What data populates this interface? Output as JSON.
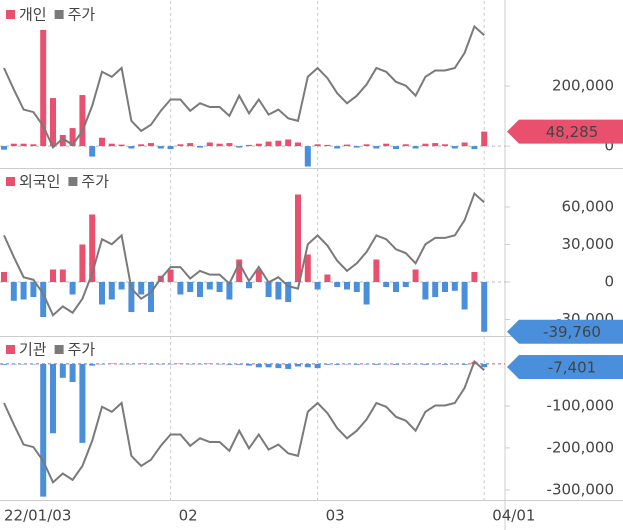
{
  "chart_data": [
    {
      "type": "bar",
      "series": [
        {
          "name": "개인",
          "color": "#e8506e",
          "negative_color": "#4a8fdb",
          "values": [
            -12000,
            8000,
            8000,
            6000,
            387000,
            160000,
            37000,
            60000,
            170000,
            -35000,
            28000,
            8000,
            5000,
            -8000,
            6000,
            10000,
            -8000,
            -10000,
            6000,
            10000,
            -5000,
            12000,
            8000,
            10000,
            -5000,
            4000,
            8000,
            15000,
            18000,
            22000,
            12000,
            -68000,
            6000,
            4000,
            -8000,
            5000,
            -5000,
            6000,
            -8000,
            8000,
            -10000,
            6000,
            -8000,
            8000,
            10000,
            6000,
            -8000,
            12000,
            -10000,
            48285
          ],
          "value_labels": [
            null,
            null,
            null,
            null,
            null,
            null,
            null,
            null,
            null,
            null,
            null,
            null,
            null,
            null,
            null,
            null,
            null,
            null,
            null,
            null,
            null,
            null,
            null,
            null,
            null,
            null,
            null,
            null,
            null,
            null,
            null,
            null,
            null,
            null,
            null,
            null,
            null,
            null,
            null,
            null,
            null,
            null,
            null,
            null,
            null,
            null,
            null,
            null,
            null,
            "48,285"
          ]
        },
        {
          "name": "주가",
          "type": "line",
          "color": "#7a7a7a",
          "values": [
            65,
            48,
            32,
            30,
            19,
            2,
            9,
            4,
            15,
            35,
            62,
            58,
            65,
            23,
            15,
            20,
            31,
            40,
            40,
            31,
            37,
            34,
            34,
            27,
            43,
            29,
            40,
            28,
            32,
            25,
            23,
            58,
            65,
            57,
            45,
            37,
            43,
            52,
            65,
            62,
            54,
            51,
            43,
            58,
            63,
            63,
            65,
            77,
            98,
            91
          ]
        }
      ],
      "ylim": [
        -63000,
        470000
      ],
      "price_lim": [
        -12,
        115
      ],
      "yticks": [
        0,
        {
          "value": 200000,
          "label": "200,000"
        }
      ]
    },
    {
      "type": "bar",
      "series": [
        {
          "name": "외국인",
          "color": "#e8506e",
          "negative_color": "#4a8fdb",
          "values": [
            8000,
            -15000,
            -14000,
            -12000,
            -28000,
            10000,
            10000,
            -10000,
            30000,
            54000,
            -18000,
            -14000,
            -6000,
            -24000,
            -10000,
            -24000,
            5000,
            10000,
            -10000,
            -8000,
            -12000,
            -6000,
            -8000,
            -14000,
            18000,
            -5000,
            10000,
            -12000,
            -14000,
            -16000,
            70000,
            22000,
            -6000,
            6000,
            -4000,
            -6000,
            -8000,
            -18000,
            18000,
            -4000,
            -8000,
            -4000,
            10000,
            -14000,
            -12000,
            -8000,
            -7000,
            -22000,
            8000,
            -39760
          ],
          "value_labels": [
            null,
            null,
            null,
            null,
            null,
            null,
            null,
            null,
            null,
            null,
            null,
            null,
            null,
            null,
            null,
            null,
            null,
            null,
            null,
            null,
            null,
            null,
            null,
            null,
            null,
            null,
            null,
            null,
            null,
            null,
            null,
            null,
            null,
            null,
            null,
            null,
            null,
            null,
            null,
            null,
            null,
            null,
            null,
            null,
            null,
            null,
            null,
            null,
            null,
            "-39,760"
          ]
        },
        {
          "name": "주가",
          "type": "line",
          "color": "#7a7a7a",
          "values": [
            65,
            48,
            32,
            30,
            19,
            2,
            9,
            4,
            15,
            35,
            62,
            58,
            65,
            23,
            15,
            20,
            31,
            40,
            40,
            31,
            37,
            34,
            34,
            27,
            43,
            29,
            40,
            28,
            32,
            25,
            23,
            58,
            65,
            57,
            45,
            37,
            43,
            52,
            65,
            62,
            54,
            51,
            43,
            58,
            63,
            63,
            65,
            77,
            98,
            91
          ]
        }
      ],
      "ylim": [
        -40800,
        88000
      ],
      "price_lim": [
        -12,
        115
      ],
      "yticks": [
        {
          "value": -30000,
          "label": "-30,000"
        },
        0,
        {
          "value": 30000,
          "label": "30,000"
        },
        {
          "value": 60000,
          "label": "60,000"
        }
      ]
    },
    {
      "type": "bar",
      "series": [
        {
          "name": "기관",
          "color": "#e8506e",
          "negative_color": "#4a8fdb",
          "values": [
            -2000,
            -1000,
            -1000,
            -1000,
            -316000,
            -165000,
            -33000,
            -43000,
            -188000,
            -4000,
            -1000,
            1000,
            -1000,
            -1000,
            1000,
            -1000,
            -1000,
            -1000,
            1000,
            -1000,
            -1000,
            1000,
            -1000,
            -2000,
            -2000,
            -4000,
            -8000,
            -8000,
            -10000,
            -12000,
            -6000,
            -8000,
            -10000,
            -2000,
            -2000,
            -1000,
            -2000,
            -1000,
            -2000,
            -1000,
            -2000,
            -1000,
            -1000,
            -2000,
            -1000,
            -2000,
            -1000,
            -2000,
            5000,
            -7401
          ],
          "value_labels": [
            null,
            null,
            null,
            null,
            null,
            null,
            null,
            null,
            null,
            null,
            null,
            null,
            null,
            null,
            null,
            null,
            null,
            null,
            null,
            null,
            null,
            null,
            null,
            null,
            null,
            null,
            null,
            null,
            null,
            null,
            null,
            null,
            null,
            null,
            null,
            null,
            null,
            null,
            null,
            null,
            null,
            null,
            null,
            null,
            null,
            null,
            null,
            null,
            null,
            "-7,401"
          ]
        },
        {
          "name": "주가",
          "type": "line",
          "color": "#7a7a7a",
          "values": [
            65,
            48,
            32,
            30,
            19,
            2,
            9,
            4,
            15,
            35,
            62,
            58,
            65,
            23,
            15,
            20,
            31,
            40,
            40,
            31,
            37,
            34,
            34,
            27,
            43,
            29,
            40,
            28,
            32,
            25,
            23,
            58,
            65,
            57,
            45,
            37,
            43,
            52,
            65,
            62,
            54,
            51,
            43,
            58,
            63,
            63,
            65,
            77,
            98,
            91
          ]
        }
      ],
      "ylim": [
        -324000,
        57000
      ],
      "price_lim": [
        -12,
        115
      ],
      "yticks": [
        {
          "value": -300000,
          "label": "-300,000"
        },
        {
          "value": -200000,
          "label": "-200,000"
        },
        {
          "value": -100000,
          "label": "-100,000"
        }
      ],
      "categories": [
        "22/01/03",
        null,
        null,
        null,
        null,
        null,
        null,
        null,
        null,
        null,
        null,
        null,
        null,
        null,
        null,
        null,
        null,
        "02",
        null,
        null,
        null,
        null,
        null,
        null,
        null,
        null,
        null,
        null,
        null,
        null,
        null,
        null,
        "03",
        null,
        null,
        null,
        null,
        null,
        null,
        null,
        null,
        null,
        null,
        null,
        null,
        null,
        null,
        null,
        null,
        "04/01"
      ]
    }
  ]
}
